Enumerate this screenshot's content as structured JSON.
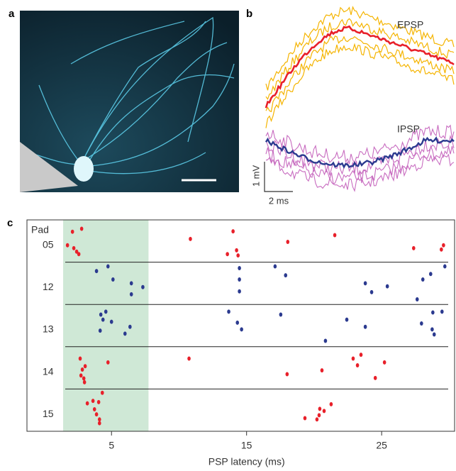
{
  "figure": {
    "panel_a_label": "a",
    "panel_b_label": "b",
    "epsp_label": "EPSP",
    "ipsp_label": "IPSP",
    "scale_y_label": "1 mV",
    "scale_x_label": "2 ms"
  },
  "chart_data": {
    "type": "scatter",
    "panel_label": "c",
    "row_title": "Pad",
    "xlabel": "PSP latency (ms)",
    "xlim": [
      -1.26,
      30.4
    ],
    "xticks": [
      5,
      15,
      25
    ],
    "ylim": [
      0,
      1
    ],
    "highlight_span": [
      1.42,
      7.74
    ],
    "highlight_color": "#cfe8d6",
    "series": [
      {
        "name": "05",
        "color": "#e8202a",
        "x": [
          2.11,
          2.79,
          1.74,
          2.21,
          2.42,
          2.58,
          10.84,
          14.0,
          13.58,
          14.26,
          14.37,
          18.05,
          21.53,
          27.37,
          29.42,
          29.58
        ],
        "y": [
          0.28,
          0.21,
          0.6,
          0.67,
          0.75,
          0.81,
          0.45,
          0.27,
          0.81,
          0.72,
          0.84,
          0.52,
          0.36,
          0.67,
          0.7,
          0.6
        ]
      },
      {
        "name": "12",
        "color": "#2b3a8f",
        "x": [
          3.89,
          4.74,
          5.11,
          6.47,
          7.32,
          6.47,
          14.47,
          14.47,
          14.47,
          17.11,
          17.89,
          23.79,
          24.26,
          25.42,
          27.63,
          28.05,
          28.63,
          29.68
        ],
        "y": [
          0.21,
          0.1,
          0.41,
          0.5,
          0.59,
          0.76,
          0.14,
          0.41,
          0.69,
          0.1,
          0.31,
          0.5,
          0.71,
          0.57,
          0.88,
          0.41,
          0.28,
          0.1
        ]
      },
      {
        "name": "13",
        "color": "#2b3a8f",
        "x": [
          4.58,
          4.21,
          4.37,
          5.0,
          6.37,
          6.0,
          4.16,
          13.68,
          14.32,
          14.63,
          17.53,
          22.42,
          23.79,
          27.95,
          28.79,
          29.47,
          28.74,
          28.89,
          20.84
        ],
        "y": [
          0.17,
          0.24,
          0.36,
          0.41,
          0.53,
          0.69,
          0.62,
          0.17,
          0.43,
          0.59,
          0.24,
          0.36,
          0.53,
          0.45,
          0.19,
          0.17,
          0.59,
          0.71,
          0.86
        ]
      },
      {
        "name": "14",
        "color": "#e8202a",
        "x": [
          2.68,
          3.05,
          2.84,
          2.95,
          3.0,
          2.74,
          4.74,
          10.74,
          18.0,
          20.58,
          22.89,
          23.21,
          23.47,
          25.21,
          24.53
        ],
        "y": [
          0.28,
          0.46,
          0.54,
          0.75,
          0.84,
          0.68,
          0.37,
          0.28,
          0.65,
          0.56,
          0.28,
          0.44,
          0.19,
          0.37,
          0.74
        ]
      },
      {
        "name": "15",
        "color": "#e8202a",
        "x": [
          4.32,
          4.05,
          3.21,
          3.63,
          3.74,
          3.89,
          4.11,
          4.11,
          20.42,
          20.74,
          21.26,
          20.37,
          20.21,
          19.32
        ],
        "y": [
          0.09,
          0.31,
          0.34,
          0.28,
          0.48,
          0.6,
          0.72,
          0.81,
          0.47,
          0.52,
          0.36,
          0.62,
          0.72,
          0.69
        ]
      }
    ]
  }
}
